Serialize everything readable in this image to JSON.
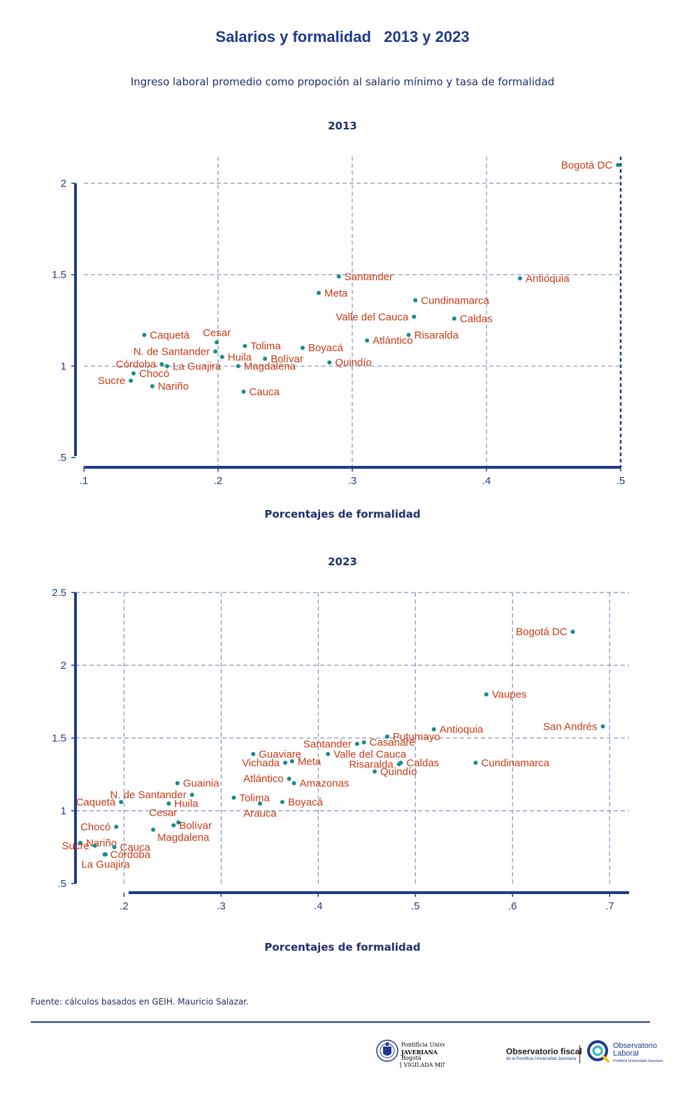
{
  "header": {
    "title": "Salarios y formalidad   2013 y 2023",
    "subtitle": "Ingreso laboral promedio como propoción al salario mínimo y tasa de formalidad"
  },
  "colors": {
    "title": "#1f3a8a",
    "axis": "#1f3a8a",
    "grid": "#8090c8",
    "marker": "#1a8a8a",
    "label": "#c83a14"
  },
  "chart_data": [
    {
      "type": "scatter",
      "title": "2013",
      "xlabel": "Porcentajes de formalidad",
      "ylabel": "",
      "xlim": [
        0.1,
        0.5
      ],
      "ylim": [
        0.5,
        2.1
      ],
      "xticks": [
        0.1,
        0.2,
        0.3,
        0.4,
        0.5
      ],
      "xtick_labels": [
        ".1",
        ".2",
        ".3",
        ".4",
        ".5"
      ],
      "yticks": [
        0.5,
        1,
        1.5,
        2
      ],
      "ytick_labels": [
        ".5",
        "1",
        "1.5",
        "2"
      ],
      "grid": true,
      "points": [
        {
          "label": "Bogotá DC",
          "x": 0.498,
          "y": 2.1,
          "pos": "left"
        },
        {
          "label": "Antioquia",
          "x": 0.425,
          "y": 1.48,
          "pos": "right"
        },
        {
          "label": "Santander",
          "x": 0.29,
          "y": 1.49,
          "pos": "right"
        },
        {
          "label": "Meta",
          "x": 0.275,
          "y": 1.4,
          "pos": "right"
        },
        {
          "label": "Cundinamarca",
          "x": 0.347,
          "y": 1.36,
          "pos": "right"
        },
        {
          "label": "Valle del Cauca",
          "x": 0.346,
          "y": 1.27,
          "pos": "left"
        },
        {
          "label": "Caldas",
          "x": 0.376,
          "y": 1.26,
          "pos": "right"
        },
        {
          "label": "Risaralda",
          "x": 0.342,
          "y": 1.17,
          "pos": "right"
        },
        {
          "label": "Atlántico",
          "x": 0.311,
          "y": 1.14,
          "pos": "right"
        },
        {
          "label": "Caquetá",
          "x": 0.145,
          "y": 1.17,
          "pos": "right"
        },
        {
          "label": "Cesar",
          "x": 0.199,
          "y": 1.13,
          "pos": "top"
        },
        {
          "label": "Tolima",
          "x": 0.22,
          "y": 1.11,
          "pos": "right"
        },
        {
          "label": "Boyacá",
          "x": 0.263,
          "y": 1.1,
          "pos": "right"
        },
        {
          "label": "N. de Santander",
          "x": 0.198,
          "y": 1.08,
          "pos": "left"
        },
        {
          "label": "Huila",
          "x": 0.203,
          "y": 1.05,
          "pos": "right"
        },
        {
          "label": "Bolívar",
          "x": 0.235,
          "y": 1.04,
          "pos": "right"
        },
        {
          "label": "Quindío",
          "x": 0.283,
          "y": 1.02,
          "pos": "right"
        },
        {
          "label": "Córdoba",
          "x": 0.158,
          "y": 1.01,
          "pos": "left"
        },
        {
          "label": "La Guajira",
          "x": 0.162,
          "y": 1.0,
          "pos": "right"
        },
        {
          "label": "Magdalena",
          "x": 0.215,
          "y": 1.0,
          "pos": "right"
        },
        {
          "label": "Chocó",
          "x": 0.137,
          "y": 0.96,
          "pos": "right"
        },
        {
          "label": "Sucre",
          "x": 0.135,
          "y": 0.92,
          "pos": "left"
        },
        {
          "label": "Nariño",
          "x": 0.151,
          "y": 0.89,
          "pos": "right"
        },
        {
          "label": "Cauca",
          "x": 0.219,
          "y": 0.86,
          "pos": "right"
        }
      ]
    },
    {
      "type": "scatter",
      "title": "2023",
      "xlabel": "Porcentajes de formalidad",
      "ylabel": "",
      "xlim": [
        0.15,
        0.72
      ],
      "ylim": [
        0.5,
        2.5
      ],
      "xticks": [
        0.2,
        0.3,
        0.4,
        0.5,
        0.6,
        0.7
      ],
      "xtick_labels": [
        ".2",
        ".3",
        ".4",
        ".5",
        ".6",
        ".7"
      ],
      "yticks": [
        0.5,
        1,
        1.5,
        2,
        2.5
      ],
      "ytick_labels": [
        ".5",
        "1",
        "1.5",
        "2",
        "2.5"
      ],
      "grid": true,
      "points": [
        {
          "label": "Bogotá DC",
          "x": 0.662,
          "y": 2.23,
          "pos": "left"
        },
        {
          "label": "Vaupes",
          "x": 0.573,
          "y": 1.8,
          "pos": "right"
        },
        {
          "label": "Antioquia",
          "x": 0.519,
          "y": 1.56,
          "pos": "right"
        },
        {
          "label": "San Andrés",
          "x": 0.693,
          "y": 1.58,
          "pos": "left"
        },
        {
          "label": "Putumayo",
          "x": 0.471,
          "y": 1.51,
          "pos": "right"
        },
        {
          "label": "Casanare",
          "x": 0.447,
          "y": 1.47,
          "pos": "right"
        },
        {
          "label": "Santander",
          "x": 0.44,
          "y": 1.46,
          "pos": "left"
        },
        {
          "label": "Guaviare",
          "x": 0.333,
          "y": 1.39,
          "pos": "right"
        },
        {
          "label": "Valle del Cauca",
          "x": 0.41,
          "y": 1.39,
          "pos": "right"
        },
        {
          "label": "Meta",
          "x": 0.373,
          "y": 1.34,
          "pos": "right"
        },
        {
          "label": "Vichada",
          "x": 0.366,
          "y": 1.33,
          "pos": "left"
        },
        {
          "label": "Risaralda",
          "x": 0.483,
          "y": 1.32,
          "pos": "left"
        },
        {
          "label": "Caldas",
          "x": 0.485,
          "y": 1.33,
          "pos": "right"
        },
        {
          "label": "Cundinamarca",
          "x": 0.562,
          "y": 1.33,
          "pos": "right"
        },
        {
          "label": "Quindío",
          "x": 0.458,
          "y": 1.27,
          "pos": "right"
        },
        {
          "label": "Atlántico",
          "x": 0.37,
          "y": 1.22,
          "pos": "left"
        },
        {
          "label": "Amazonas",
          "x": 0.375,
          "y": 1.19,
          "pos": "right"
        },
        {
          "label": "Guainia",
          "x": 0.255,
          "y": 1.19,
          "pos": "right"
        },
        {
          "label": "N. de Santander",
          "x": 0.27,
          "y": 1.11,
          "pos": "left"
        },
        {
          "label": "Tolima",
          "x": 0.313,
          "y": 1.09,
          "pos": "right"
        },
        {
          "label": "Caquetá",
          "x": 0.197,
          "y": 1.06,
          "pos": "left"
        },
        {
          "label": "Huila",
          "x": 0.246,
          "y": 1.05,
          "pos": "right"
        },
        {
          "label": "Boyacá",
          "x": 0.363,
          "y": 1.06,
          "pos": "right"
        },
        {
          "label": "Arauca",
          "x": 0.34,
          "y": 1.05,
          "pos": "bottom"
        },
        {
          "label": "Cesar",
          "x": 0.256,
          "y": 0.92,
          "pos": "top-left"
        },
        {
          "label": "Bolívar",
          "x": 0.251,
          "y": 0.9,
          "pos": "right"
        },
        {
          "label": "Chocó",
          "x": 0.192,
          "y": 0.89,
          "pos": "left"
        },
        {
          "label": "Magdalena",
          "x": 0.23,
          "y": 0.87,
          "pos": "bottom-right"
        },
        {
          "label": "Nariño",
          "x": 0.155,
          "y": 0.78,
          "pos": "right"
        },
        {
          "label": "Sucre",
          "x": 0.17,
          "y": 0.76,
          "pos": "left"
        },
        {
          "label": "Cauca",
          "x": 0.19,
          "y": 0.75,
          "pos": "right"
        },
        {
          "label": "Córdoba",
          "x": 0.18,
          "y": 0.7,
          "pos": "right"
        },
        {
          "label": "La Guajira",
          "x": 0.181,
          "y": 0.7,
          "pos": "bottom"
        }
      ]
    }
  ],
  "footer": {
    "source": "Fuente: cálculos basados en GEIH. Mauricio Salazar.",
    "logo_javeriana": [
      "Pontificia Universidad",
      "JAVERIANA",
      "Bogotá"
    ],
    "logo_javeriana_tagline": "[ VIGILADA MINEDUCACIÓN ]",
    "logo_obs_fiscal": "Observatorio fiscal",
    "logo_obs_fiscal_sub": "de la Pontificia Universidad Javeriana",
    "logo_obs_laboral": [
      "Observatorio",
      "Laboral"
    ],
    "logo_obs_laboral_sub": "Pontificia Universidad Javeriana"
  }
}
